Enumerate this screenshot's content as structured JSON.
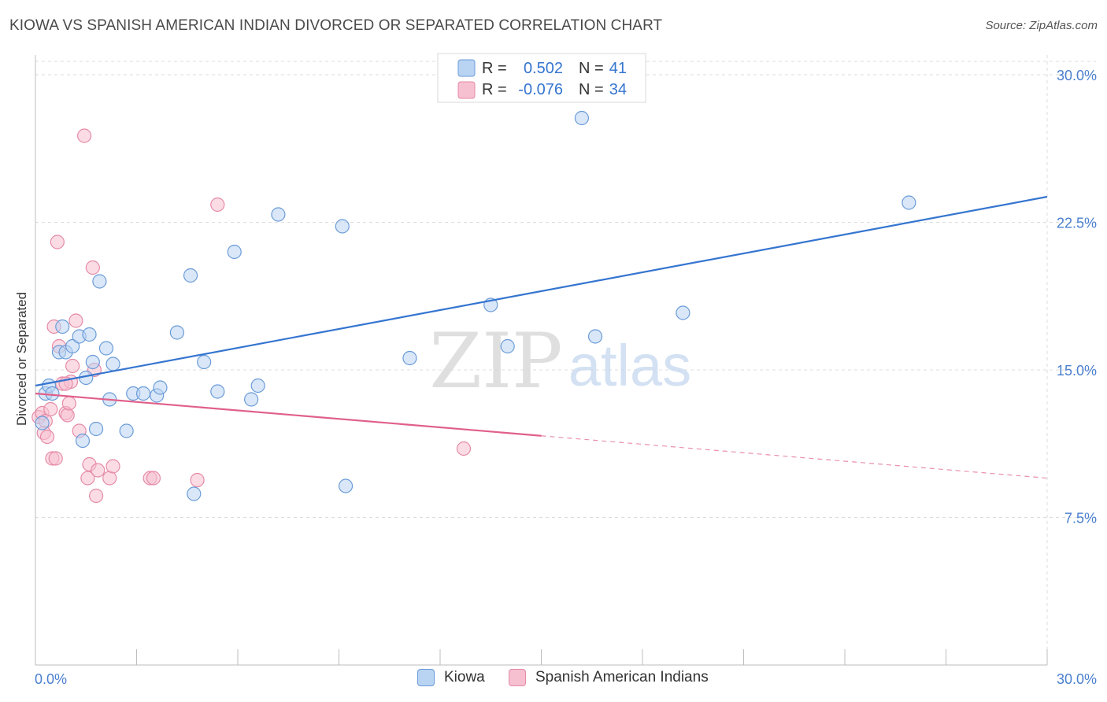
{
  "header": {
    "title": "KIOWA VS SPANISH AMERICAN INDIAN DIVORCED OR SEPARATED CORRELATION CHART",
    "source": "Source: ZipAtlas.com"
  },
  "watermark": {
    "zip": "ZIP",
    "atlas": "atlas"
  },
  "colors": {
    "kiowa_fill": "#b9d3f3",
    "kiowa_stroke": "#6a9bd8",
    "kiowa_line": "#3575d0",
    "spanish_fill": "#f7c0d0",
    "spanish_stroke": "#e58aa6",
    "spanish_line": "#e0608a",
    "tick_label": "#4a7fcf",
    "grid": "#dddddd"
  },
  "chart_data": {
    "type": "scatter",
    "title": "KIOWA VS SPANISH AMERICAN INDIAN DIVORCED OR SEPARATED CORRELATION CHART",
    "xlabel": "",
    "ylabel": "Divorced or Separated",
    "xlim": [
      0,
      30
    ],
    "ylim": [
      0,
      31
    ],
    "x_tick_labels": [
      "0.0%",
      "30.0%"
    ],
    "y_ticks": [
      7.5,
      15.0,
      22.5,
      30.0
    ],
    "y_tick_labels": [
      "7.5%",
      "15.0%",
      "22.5%",
      "30.0%"
    ],
    "grid": true,
    "legend_position": "top-center",
    "stats": [
      {
        "r_label": "R =",
        "r_value": "0.502",
        "n_label": "N =",
        "n_value": "41"
      },
      {
        "r_label": "R =",
        "r_value": "-0.076",
        "n_label": "N =",
        "n_value": "34"
      }
    ],
    "series": [
      {
        "name": "Kiowa",
        "trend": {
          "x": [
            0,
            30
          ],
          "y": [
            14.2,
            23.8
          ],
          "solid_to": 30
        },
        "points": [
          [
            0.2,
            12.3
          ],
          [
            0.3,
            13.8
          ],
          [
            0.4,
            14.2
          ],
          [
            0.5,
            13.8
          ],
          [
            0.7,
            15.9
          ],
          [
            0.8,
            17.2
          ],
          [
            0.9,
            15.9
          ],
          [
            1.1,
            16.2
          ],
          [
            1.3,
            16.7
          ],
          [
            1.4,
            11.4
          ],
          [
            1.5,
            14.6
          ],
          [
            1.6,
            16.8
          ],
          [
            1.7,
            15.4
          ],
          [
            1.8,
            12.0
          ],
          [
            1.9,
            19.5
          ],
          [
            2.1,
            16.1
          ],
          [
            2.2,
            13.5
          ],
          [
            2.3,
            15.3
          ],
          [
            2.7,
            11.9
          ],
          [
            2.9,
            13.8
          ],
          [
            3.2,
            13.8
          ],
          [
            3.6,
            13.7
          ],
          [
            3.7,
            14.1
          ],
          [
            4.2,
            16.9
          ],
          [
            4.6,
            19.8
          ],
          [
            4.7,
            8.7
          ],
          [
            5.0,
            15.4
          ],
          [
            5.4,
            13.9
          ],
          [
            5.9,
            21.0
          ],
          [
            6.4,
            13.5
          ],
          [
            6.6,
            14.2
          ],
          [
            7.2,
            22.9
          ],
          [
            9.1,
            22.3
          ],
          [
            9.2,
            9.1
          ],
          [
            11.1,
            15.6
          ],
          [
            13.5,
            18.3
          ],
          [
            14.0,
            16.2
          ],
          [
            16.2,
            27.8
          ],
          [
            16.6,
            16.7
          ],
          [
            19.2,
            17.9
          ],
          [
            25.9,
            23.5
          ]
        ]
      },
      {
        "name": "Spanish American Indians",
        "trend": {
          "x": [
            0,
            30
          ],
          "y": [
            13.8,
            9.5
          ],
          "solid_to": 15
        },
        "points": [
          [
            0.1,
            12.6
          ],
          [
            0.2,
            12.8
          ],
          [
            0.25,
            11.8
          ],
          [
            0.3,
            12.4
          ],
          [
            0.35,
            11.6
          ],
          [
            0.45,
            13.0
          ],
          [
            0.5,
            10.5
          ],
          [
            0.55,
            17.2
          ],
          [
            0.6,
            10.5
          ],
          [
            0.65,
            21.5
          ],
          [
            0.7,
            16.2
          ],
          [
            0.8,
            14.3
          ],
          [
            0.9,
            12.8
          ],
          [
            0.95,
            12.7
          ],
          [
            1.0,
            13.3
          ],
          [
            1.05,
            14.4
          ],
          [
            1.1,
            15.2
          ],
          [
            1.2,
            17.5
          ],
          [
            1.3,
            11.9
          ],
          [
            1.45,
            26.9
          ],
          [
            1.55,
            9.5
          ],
          [
            1.6,
            10.2
          ],
          [
            1.7,
            20.2
          ],
          [
            1.75,
            15.0
          ],
          [
            1.8,
            8.6
          ],
          [
            1.85,
            9.9
          ],
          [
            2.2,
            9.5
          ],
          [
            2.3,
            10.1
          ],
          [
            3.4,
            9.5
          ],
          [
            3.5,
            9.5
          ],
          [
            4.8,
            9.4
          ],
          [
            5.4,
            23.4
          ],
          [
            12.7,
            11.0
          ],
          [
            0.9,
            14.3
          ]
        ]
      }
    ]
  }
}
